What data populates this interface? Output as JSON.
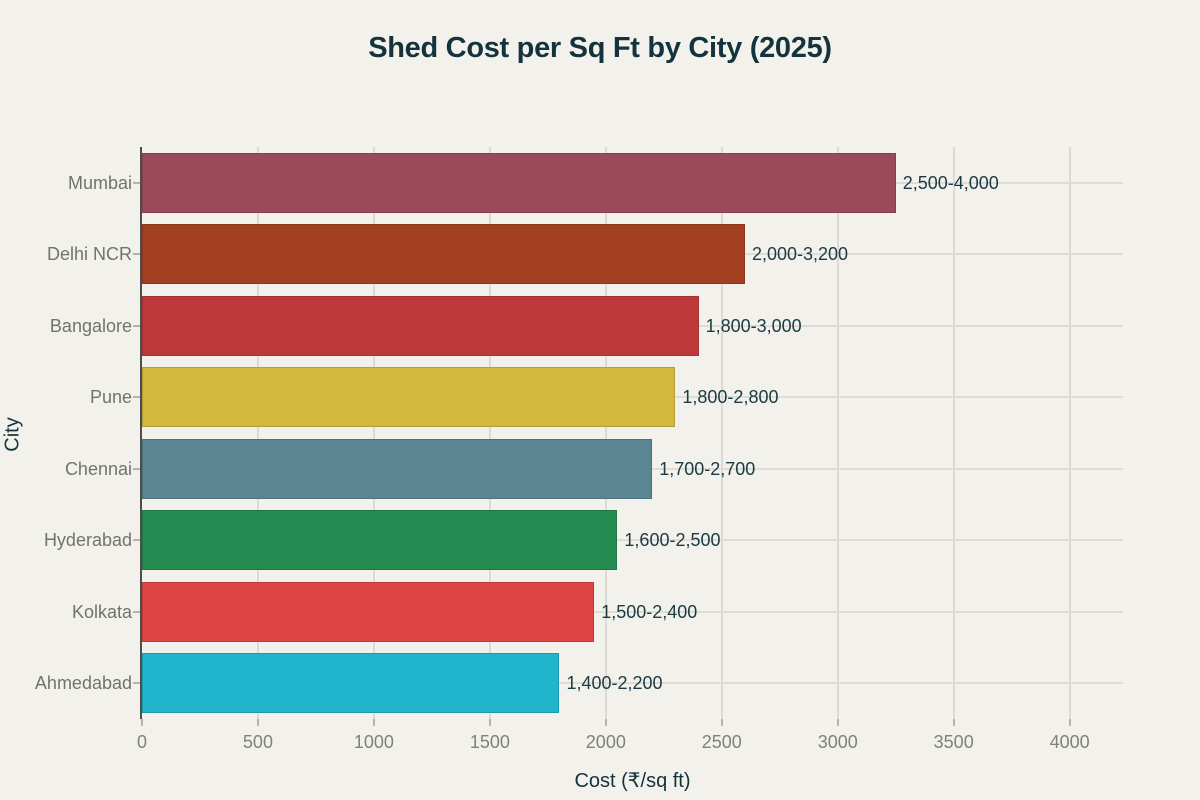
{
  "page": {
    "background_color": "#f2f1eb"
  },
  "chart_data": {
    "type": "bar",
    "orientation": "horizontal",
    "title": "Shed Cost per Sq Ft by City (2025)",
    "xlabel": "Cost (₹/sq ft)",
    "ylabel": "City",
    "categories": [
      "Mumbai",
      "Delhi NCR",
      "Bangalore",
      "Pune",
      "Chennai",
      "Hyderabad",
      "Kolkata",
      "Ahmedabad"
    ],
    "values": [
      3250,
      2600,
      2400,
      2300,
      2200,
      2050,
      1950,
      1800
    ],
    "bar_labels": [
      "2,500-4,000",
      "2,000-3,200",
      "1,800-3,000",
      "1,800-2,800",
      "1,700-2,700",
      "1,600-2,500",
      "1,500-2,400",
      "1,400-2,200"
    ],
    "bar_colors": [
      "#9b4a5b",
      "#a23f20",
      "#be3a3a",
      "#d3b83e",
      "#5a8593",
      "#248c50",
      "#de4444",
      "#20b5cc"
    ],
    "x_tick_labels": [
      "0",
      "500",
      "1000",
      "1500",
      "2000",
      "2500",
      "3000",
      "3500",
      "4000"
    ],
    "x_ticks": [
      0,
      500,
      1000,
      1500,
      2000,
      2500,
      3000,
      3500,
      4000
    ],
    "xlim": [
      0,
      4230
    ],
    "grid": true,
    "legend": "none",
    "colors": {
      "title_text": "#14333d",
      "value_label_text": "#1c3a43",
      "axis_tick_text": "#81817b",
      "category_text": "#73736e",
      "gridline": "#dbdad4",
      "axis_line": "#4d4d4b"
    }
  }
}
